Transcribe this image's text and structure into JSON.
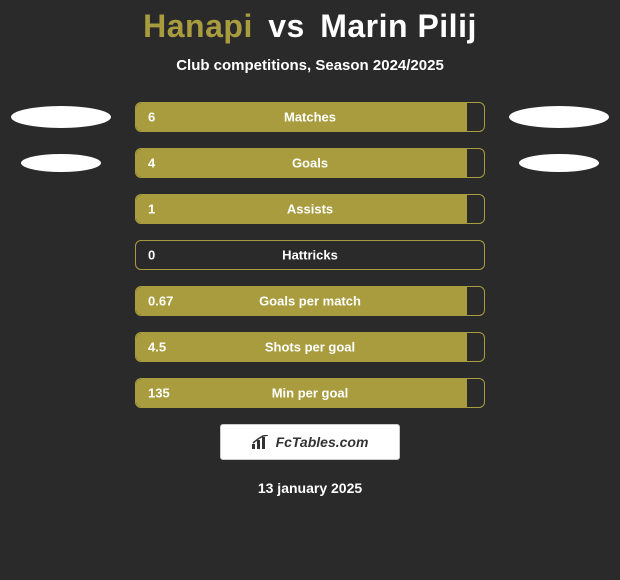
{
  "title": {
    "player1": "Hanapi",
    "vs": "vs",
    "player2": "Marin Pilij",
    "player1_color": "#a89c3e",
    "vs_color": "#ffffff",
    "player2_color": "#ffffff",
    "fontsize": 32
  },
  "subtitle": "Club competitions, Season 2024/2025",
  "background_color": "#2a2a2a",
  "bar_fill_color": "#a89c3e",
  "bar_border_color": "#a89c3e",
  "bar_track_width": 350,
  "bar_track_height": 30,
  "bar_radius": 6,
  "text_color": "#ffffff",
  "badge_ellipses": {
    "left": [
      {
        "w": 100,
        "h": 22
      },
      {
        "w": 80,
        "h": 18
      }
    ],
    "right": [
      {
        "w": 100,
        "h": 22
      },
      {
        "w": 80,
        "h": 18
      }
    ]
  },
  "stats": [
    {
      "label": "Matches",
      "value": "6",
      "fill_pct": 95,
      "show_left_badge": true,
      "show_right_badge": true
    },
    {
      "label": "Goals",
      "value": "4",
      "fill_pct": 95,
      "show_left_badge": true,
      "show_right_badge": true
    },
    {
      "label": "Assists",
      "value": "1",
      "fill_pct": 95,
      "show_left_badge": false,
      "show_right_badge": false
    },
    {
      "label": "Hattricks",
      "value": "0",
      "fill_pct": 0,
      "show_left_badge": false,
      "show_right_badge": false
    },
    {
      "label": "Goals per match",
      "value": "0.67",
      "fill_pct": 95,
      "show_left_badge": false,
      "show_right_badge": false
    },
    {
      "label": "Shots per goal",
      "value": "4.5",
      "fill_pct": 95,
      "show_left_badge": false,
      "show_right_badge": false
    },
    {
      "label": "Min per goal",
      "value": "135",
      "fill_pct": 95,
      "show_left_badge": false,
      "show_right_badge": false
    }
  ],
  "footer": {
    "brand": "FcTables.com",
    "date": "13 january 2025",
    "box_bg": "#ffffff",
    "box_border": "#cccccc",
    "logo_bar_color": "#333333"
  }
}
